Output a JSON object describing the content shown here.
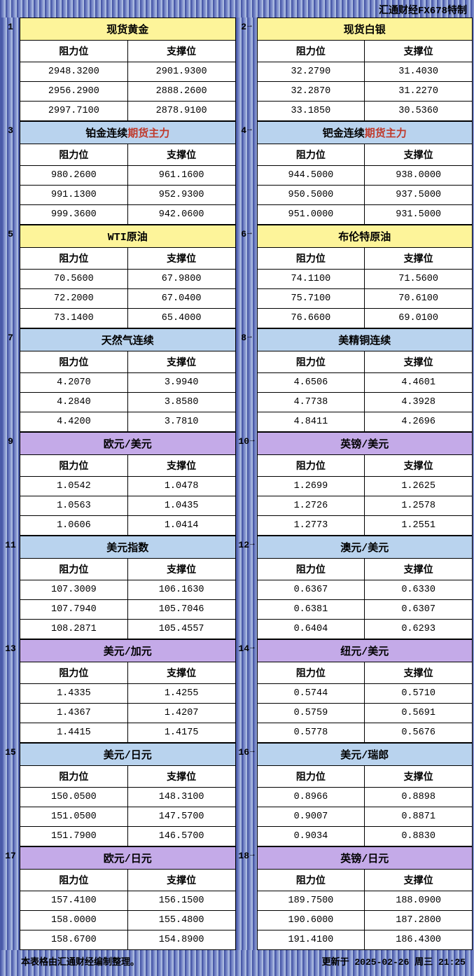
{
  "header_text": "汇通财经FX678特制",
  "col_headers": {
    "resistance": "阻力位",
    "support": "支撑位"
  },
  "footer": {
    "left": "本表格由汇通财经编制整理。",
    "right": "更新于 2025-02-26 周三 21:25"
  },
  "title_colors": {
    "yellow": "#fdf49a",
    "blue": "#b9d3ee",
    "purple": "#c4aae8"
  },
  "blocks": [
    {
      "num": "1",
      "title": "现货黄金",
      "color": "yellow",
      "accent": "",
      "rows": [
        [
          "2948.3200",
          "2901.9300"
        ],
        [
          "2956.2900",
          "2888.2600"
        ],
        [
          "2997.7100",
          "2878.9100"
        ]
      ]
    },
    {
      "num": "2→",
      "title": "现货白银",
      "color": "yellow",
      "accent": "",
      "rows": [
        [
          "32.2790",
          "31.4030"
        ],
        [
          "32.2870",
          "31.2270"
        ],
        [
          "33.1850",
          "30.5360"
        ]
      ]
    },
    {
      "num": "3",
      "title": "铂金连续",
      "color": "blue",
      "accent": "期货主力",
      "rows": [
        [
          "980.2600",
          "961.1600"
        ],
        [
          "991.1300",
          "952.9300"
        ],
        [
          "999.3600",
          "942.0600"
        ]
      ]
    },
    {
      "num": "4→",
      "title": "钯金连续",
      "color": "blue",
      "accent": "期货主力",
      "rows": [
        [
          "944.5000",
          "938.0000"
        ],
        [
          "950.5000",
          "937.5000"
        ],
        [
          "951.0000",
          "931.5000"
        ]
      ]
    },
    {
      "num": "5",
      "title": "WTI原油",
      "color": "yellow",
      "accent": "",
      "rows": [
        [
          "70.5600",
          "67.9800"
        ],
        [
          "72.2000",
          "67.0400"
        ],
        [
          "73.1400",
          "65.4000"
        ]
      ]
    },
    {
      "num": "6→",
      "title": "布伦特原油",
      "color": "yellow",
      "accent": "",
      "rows": [
        [
          "74.1100",
          "71.5600"
        ],
        [
          "75.7100",
          "70.6100"
        ],
        [
          "76.6600",
          "69.0100"
        ]
      ]
    },
    {
      "num": "7",
      "title": "天然气连续",
      "color": "blue",
      "accent": "",
      "rows": [
        [
          "4.2070",
          "3.9940"
        ],
        [
          "4.2840",
          "3.8580"
        ],
        [
          "4.4200",
          "3.7810"
        ]
      ]
    },
    {
      "num": "8→",
      "title": "美精铜连续",
      "color": "blue",
      "accent": "",
      "rows": [
        [
          "4.6506",
          "4.4601"
        ],
        [
          "4.7738",
          "4.3928"
        ],
        [
          "4.8411",
          "4.2696"
        ]
      ]
    },
    {
      "num": "9",
      "title": "欧元/美元",
      "color": "purple",
      "accent": "",
      "rows": [
        [
          "1.0542",
          "1.0478"
        ],
        [
          "1.0563",
          "1.0435"
        ],
        [
          "1.0606",
          "1.0414"
        ]
      ]
    },
    {
      "num": "10→",
      "title": "英镑/美元",
      "color": "purple",
      "accent": "",
      "rows": [
        [
          "1.2699",
          "1.2625"
        ],
        [
          "1.2726",
          "1.2578"
        ],
        [
          "1.2773",
          "1.2551"
        ]
      ]
    },
    {
      "num": "11",
      "title": "美元指数",
      "color": "blue",
      "accent": "",
      "rows": [
        [
          "107.3009",
          "106.1630"
        ],
        [
          "107.7940",
          "105.7046"
        ],
        [
          "108.2871",
          "105.4557"
        ]
      ]
    },
    {
      "num": "12→",
      "title": "澳元/美元",
      "color": "blue",
      "accent": "",
      "rows": [
        [
          "0.6367",
          "0.6330"
        ],
        [
          "0.6381",
          "0.6307"
        ],
        [
          "0.6404",
          "0.6293"
        ]
      ]
    },
    {
      "num": "13",
      "title": "美元/加元",
      "color": "purple",
      "accent": "",
      "rows": [
        [
          "1.4335",
          "1.4255"
        ],
        [
          "1.4367",
          "1.4207"
        ],
        [
          "1.4415",
          "1.4175"
        ]
      ]
    },
    {
      "num": "14→",
      "title": "纽元/美元",
      "color": "purple",
      "accent": "",
      "rows": [
        [
          "0.5744",
          "0.5710"
        ],
        [
          "0.5759",
          "0.5691"
        ],
        [
          "0.5778",
          "0.5676"
        ]
      ]
    },
    {
      "num": "15",
      "title": "美元/日元",
      "color": "blue",
      "accent": "",
      "rows": [
        [
          "150.0500",
          "148.3100"
        ],
        [
          "151.0500",
          "147.5700"
        ],
        [
          "151.7900",
          "146.5700"
        ]
      ]
    },
    {
      "num": "16→",
      "title": "美元/瑞郎",
      "color": "blue",
      "accent": "",
      "rows": [
        [
          "0.8966",
          "0.8898"
        ],
        [
          "0.9007",
          "0.8871"
        ],
        [
          "0.9034",
          "0.8830"
        ]
      ]
    },
    {
      "num": "17",
      "title": "欧元/日元",
      "color": "purple",
      "accent": "",
      "rows": [
        [
          "157.4100",
          "156.1500"
        ],
        [
          "158.0000",
          "155.4800"
        ],
        [
          "158.6700",
          "154.8900"
        ]
      ]
    },
    {
      "num": "18→",
      "title": "英镑/日元",
      "color": "purple",
      "accent": "",
      "rows": [
        [
          "189.7500",
          "188.0900"
        ],
        [
          "190.6000",
          "187.2800"
        ],
        [
          "191.4100",
          "186.4300"
        ]
      ]
    }
  ]
}
